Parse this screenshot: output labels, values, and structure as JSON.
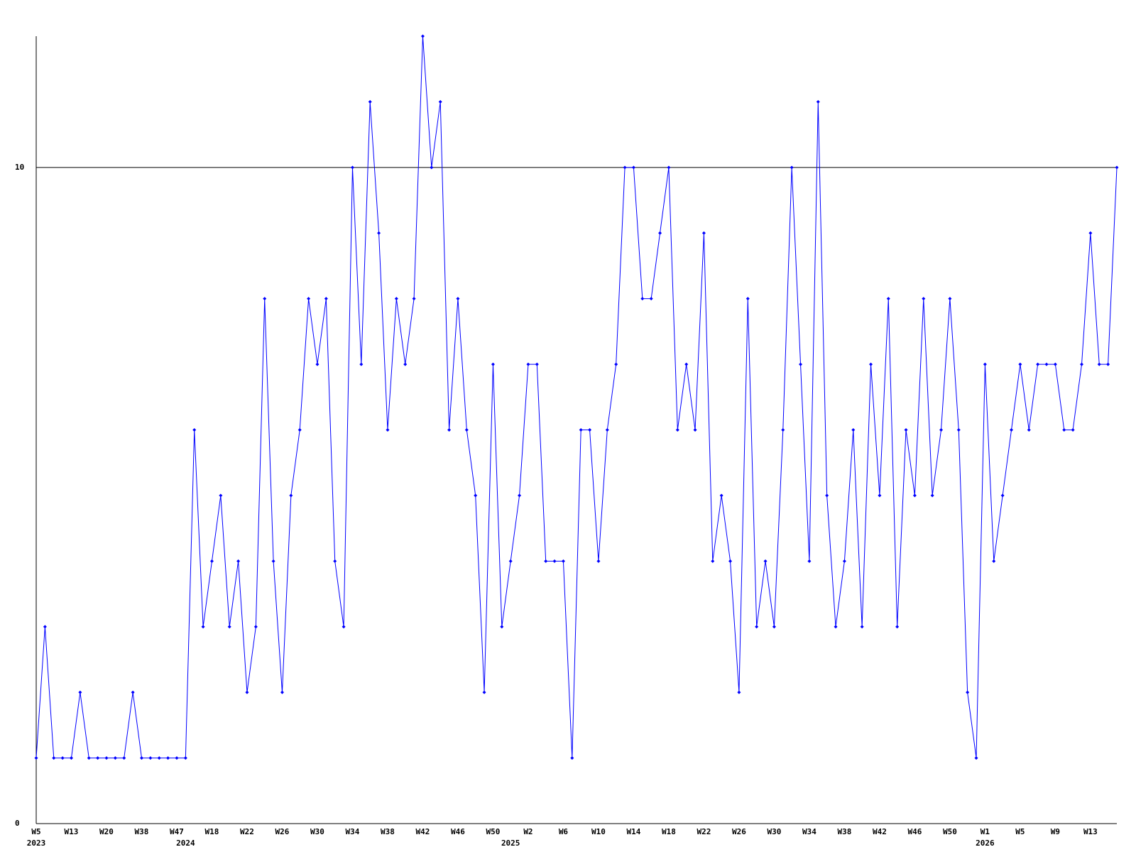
{
  "chart_data": {
    "type": "line",
    "categories": [
      "W5",
      null,
      null,
      null,
      "W13",
      null,
      null,
      null,
      "W20",
      null,
      null,
      null,
      "W38",
      null,
      null,
      null,
      "W47",
      null,
      null,
      null,
      "W18",
      null,
      null,
      null,
      "W22",
      null,
      null,
      null,
      "W26",
      null,
      null,
      null,
      "W30",
      null,
      null,
      null,
      "W34",
      null,
      null,
      null,
      "W38",
      null,
      null,
      null,
      "W42",
      null,
      null,
      null,
      "W46",
      null,
      null,
      null,
      "W50",
      null,
      null,
      null,
      "W2",
      null,
      null,
      null,
      "W6",
      null,
      null,
      null,
      "W10",
      null,
      null,
      null,
      "W14",
      null,
      null,
      null,
      "W18",
      null,
      null,
      null,
      "W22",
      null,
      null,
      null,
      "W26",
      null,
      null,
      null,
      "W30",
      null,
      null,
      null,
      "W34",
      null,
      null,
      null,
      "W38",
      null,
      null,
      null,
      "W42",
      null,
      null,
      null,
      "W46",
      null,
      null,
      null,
      "W50",
      null,
      null,
      null,
      "W1",
      null,
      null,
      null,
      "W5",
      null,
      null,
      null,
      "W9",
      null,
      null,
      null,
      "W13",
      null,
      null,
      null
    ],
    "category_years": [
      "2023",
      null,
      null,
      null,
      null,
      null,
      null,
      null,
      null,
      null,
      null,
      null,
      null,
      null,
      null,
      null,
      null,
      "2024",
      null,
      null,
      null,
      null,
      null,
      null,
      null,
      null,
      null,
      null,
      null,
      null,
      null,
      null,
      null,
      null,
      null,
      null,
      null,
      null,
      null,
      null,
      null,
      null,
      null,
      null,
      null,
      null,
      null,
      null,
      null,
      null,
      null,
      null,
      null,
      null,
      "2025",
      null,
      null,
      null,
      null,
      null,
      null,
      null,
      null,
      null,
      null,
      null,
      null,
      null,
      null,
      null,
      null,
      null,
      null,
      null,
      null,
      null,
      null,
      null,
      null,
      null,
      null,
      null,
      null,
      null,
      null,
      null,
      null,
      null,
      null,
      null,
      null,
      null,
      null,
      null,
      null,
      null,
      null,
      null,
      null,
      null,
      null,
      null,
      null,
      null,
      null,
      null,
      null,
      null,
      "2026",
      null,
      null,
      null,
      null,
      null,
      null,
      null,
      null,
      null,
      null,
      null,
      null,
      null,
      null,
      null,
      null
    ],
    "series": [
      {
        "color": "#0000ff",
        "values": [
          1,
          3,
          1,
          1,
          1,
          2,
          1,
          1,
          1,
          1,
          1,
          2,
          1,
          1,
          1,
          1,
          1,
          1,
          6,
          3,
          4,
          5,
          3,
          4,
          2,
          3,
          8,
          4,
          2,
          5,
          6,
          8,
          7,
          8,
          4,
          3,
          10,
          7,
          11,
          9,
          6,
          8,
          7,
          8,
          12,
          10,
          11,
          6,
          8,
          6,
          5,
          2,
          7,
          3,
          4,
          5,
          7,
          7,
          4,
          4,
          4,
          1,
          6,
          6,
          4,
          6,
          7,
          10,
          10,
          8,
          8,
          9,
          10,
          6,
          7,
          6,
          9,
          4,
          5,
          4,
          2,
          8,
          3,
          4,
          3,
          6,
          10,
          7,
          4,
          11,
          5,
          3,
          4,
          6,
          3,
          7,
          5,
          8,
          3,
          6,
          5,
          8,
          5,
          6,
          8,
          6,
          2,
          1,
          7,
          4,
          5,
          6,
          7,
          6,
          7,
          7,
          7,
          6,
          6,
          7,
          9,
          7,
          7,
          10
        ]
      }
    ],
    "ylim": [
      0,
      12
    ],
    "yticks": [
      0,
      10
    ],
    "grid": true
  }
}
